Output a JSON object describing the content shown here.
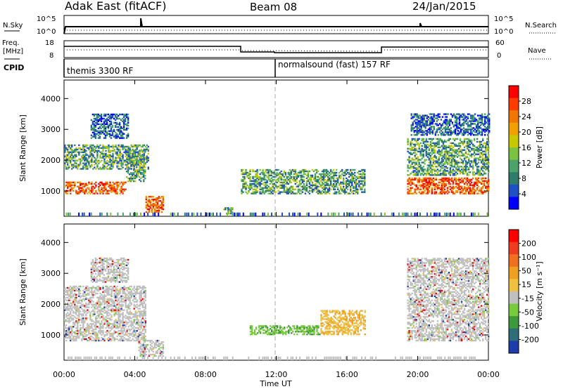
{
  "header": {
    "title": "Adak East (fitACF)",
    "beam": "Beam 08",
    "date": "24/Jan/2015"
  },
  "strip_nsky": {
    "left_label": "N.Sky",
    "left_ticks": [
      "10^5",
      "10^0"
    ],
    "right_ticks": [
      "10^5",
      "10^0"
    ],
    "right_label": "N.Search"
  },
  "strip_freq": {
    "left_label_1": "Freq.",
    "left_label_2": "[MHz]",
    "left_ticks": [
      "18",
      "8"
    ],
    "right_ticks": [
      "60",
      "0"
    ],
    "right_label": "Nave"
  },
  "cpid": {
    "label": "CPID",
    "modes": [
      {
        "start_hour": 0,
        "text": "themis 3300 RF"
      },
      {
        "start_hour": 12,
        "text": "normalsound (fast) 157 RF"
      }
    ]
  },
  "chart_data": [
    {
      "type": "heatmap",
      "panel": "power",
      "ylabel": "Slant Range [km]",
      "xlabel": "Time UT",
      "x_range_hours": [
        0,
        24
      ],
      "ylim": [
        180,
        4600
      ],
      "x_ticks": [
        "00:00",
        "04:00",
        "08:00",
        "12:00",
        "16:00",
        "20:00",
        "00:00"
      ],
      "y_ticks": [
        1000,
        2000,
        3000,
        4000
      ],
      "colorbar": {
        "label": "Power [dB]",
        "ticks": [
          4,
          8,
          12,
          16,
          20,
          24,
          28
        ],
        "colors": [
          "#0000ff",
          "#1e50c8",
          "#2e7d6a",
          "#4aa36a",
          "#7bc142",
          "#c8c800",
          "#f0a000",
          "#f07800",
          "#ff3c00",
          "#ff0000"
        ]
      },
      "features": [
        {
          "t0": 0.0,
          "t1": 3.5,
          "r0": 900,
          "r1": 1300,
          "level": "strong"
        },
        {
          "t0": 3.5,
          "t1": 4.6,
          "r0": 1300,
          "r1": 2300,
          "level": "moderate"
        },
        {
          "t0": 0.0,
          "t1": 4.8,
          "r0": 1700,
          "r1": 2500,
          "level": "moderate"
        },
        {
          "t0": 1.5,
          "t1": 3.6,
          "r0": 2700,
          "r1": 3500,
          "level": "weak"
        },
        {
          "t0": 4.6,
          "t1": 5.6,
          "r0": 300,
          "r1": 800,
          "level": "strong"
        },
        {
          "t0": 9.0,
          "t1": 9.5,
          "r0": 250,
          "r1": 450,
          "level": "moderate"
        },
        {
          "t0": 10.0,
          "t1": 17.0,
          "r0": 900,
          "r1": 1700,
          "level": "moderate"
        },
        {
          "t0": 19.4,
          "t1": 24.0,
          "r0": 900,
          "r1": 1400,
          "level": "strong"
        },
        {
          "t0": 19.4,
          "t1": 24.0,
          "r0": 1500,
          "r1": 2700,
          "level": "moderate"
        },
        {
          "t0": 19.6,
          "t1": 24.0,
          "r0": 2800,
          "r1": 3500,
          "level": "weak"
        }
      ]
    },
    {
      "type": "heatmap",
      "panel": "velocity",
      "ylabel": "Slant Range [km]",
      "xlabel": "Time UT",
      "x_range_hours": [
        0,
        24
      ],
      "ylim": [
        180,
        4600
      ],
      "x_ticks": [
        "00:00",
        "04:00",
        "08:00",
        "12:00",
        "16:00",
        "20:00",
        "00:00"
      ],
      "y_ticks": [
        1000,
        2000,
        3000,
        4000
      ],
      "colorbar": {
        "label": "Velocity [m s⁻¹]",
        "ticks": [
          200,
          100,
          50,
          15,
          -15,
          -50,
          -100,
          -200
        ],
        "colors": [
          "#1e3caa",
          "#2e6e78",
          "#3c9a3c",
          "#78cc3c",
          "#c0c0c0",
          "#f0c040",
          "#f0a020",
          "#f07020",
          "#f03c1e",
          "#ff0000"
        ]
      },
      "features": [
        {
          "t0": 0.0,
          "t1": 4.6,
          "r0": 800,
          "r1": 2600,
          "level": "ground"
        },
        {
          "t0": 1.5,
          "t1": 3.6,
          "r0": 2700,
          "r1": 3500,
          "level": "ground"
        },
        {
          "t0": 4.2,
          "t1": 5.6,
          "r0": 300,
          "r1": 800,
          "level": "ground"
        },
        {
          "t0": 10.5,
          "t1": 14.5,
          "r0": 1000,
          "r1": 1300,
          "level": "green"
        },
        {
          "t0": 14.5,
          "t1": 17.0,
          "r0": 1000,
          "r1": 1800,
          "level": "orange"
        },
        {
          "t0": 19.4,
          "t1": 24.0,
          "r0": 800,
          "r1": 3500,
          "level": "ground"
        }
      ]
    }
  ],
  "footer": {
    "xlabel": "Time UT"
  }
}
